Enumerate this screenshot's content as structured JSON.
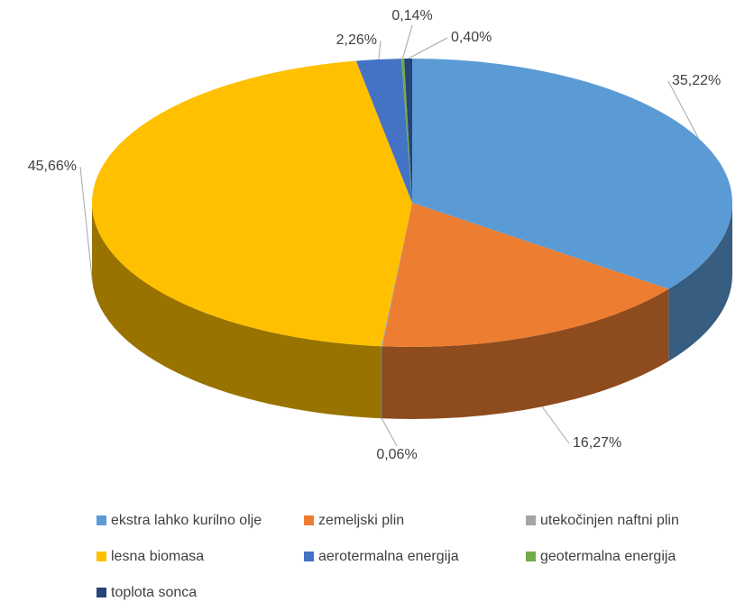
{
  "chart_data": {
    "type": "pie",
    "categories": [
      "ekstra lahko kurilno olje",
      "zemeljski plin",
      "utekočinjen naftni plin",
      "lesna biomasa",
      "aerotermalna energija",
      "geotermalna energija",
      "toplota sonca"
    ],
    "values": [
      35.22,
      16.27,
      0.06,
      45.66,
      2.26,
      0.14,
      0.4
    ],
    "value_labels": [
      "35,22%",
      "16,27%",
      "0,06%",
      "45,66%",
      "2,26%",
      "0,14%",
      "0,40%"
    ],
    "colors": [
      "#5b9bd5",
      "#ed7d31",
      "#a5a5a5",
      "#ffc000",
      "#4472c4",
      "#70ad47",
      "#264478"
    ],
    "legend": "bottom"
  }
}
